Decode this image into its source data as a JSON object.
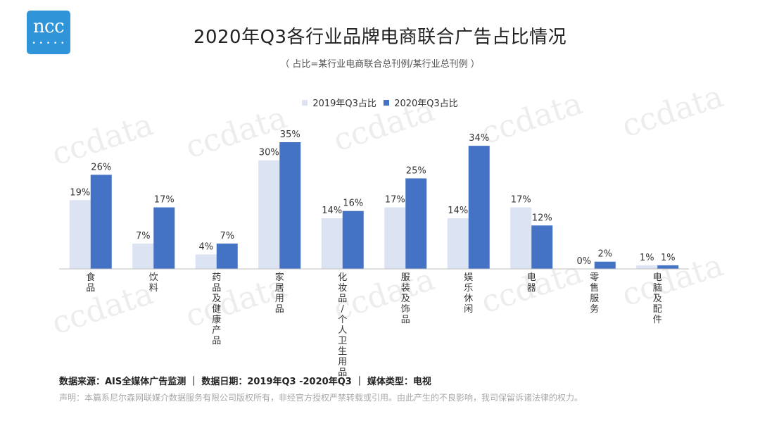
{
  "logo": {
    "text": "ncc",
    "dots": "• • • • •"
  },
  "header": {
    "title": "2020年Q3各行业品牌电商联合广告占比情况",
    "subtitle": "（ 占比=某行业电商联合总刊例/某行业总刊例 ）"
  },
  "watermark": "ccdata",
  "chart_data": {
    "type": "bar",
    "categories": [
      "食品",
      "饮料",
      "药品及健康产品",
      "家居用品",
      "化妆品/个人卫生用品",
      "服装及饰品",
      "娱乐休闲",
      "电器",
      "零售服务",
      "电脑及配件"
    ],
    "series": [
      {
        "name": "2019年Q3占比",
        "values": [
          19,
          7,
          4,
          30,
          14,
          17,
          14,
          17,
          0,
          1
        ],
        "labels": [
          "19%",
          "7%",
          "4%",
          "30%",
          "14%",
          "17%",
          "14%",
          "17%",
          "0%",
          "1%"
        ],
        "color": "#dce3f2"
      },
      {
        "name": "2020年Q3占比",
        "values": [
          26,
          17,
          7,
          35,
          16,
          25,
          34,
          12,
          2,
          1
        ],
        "labels": [
          "26%",
          "17%",
          "7%",
          "35%",
          "16%",
          "25%",
          "34%",
          "12%",
          "2%",
          "1%"
        ],
        "color": "#4472c4"
      }
    ],
    "ylim": [
      0,
      35
    ],
    "grid": false,
    "legend_position": "top-center"
  },
  "footer": {
    "source": "数据来源：AIS全媒体广告监测 ｜ 数据日期：2019年Q3 -2020年Q3 ｜ 媒体类型：电视",
    "note": "声明：本篇系尼尔森网联媒介数据服务有限公司版权所有，非经官方授权严禁转载或引用。由此产生的不良影响，我司保留诉诸法律的权力。"
  }
}
